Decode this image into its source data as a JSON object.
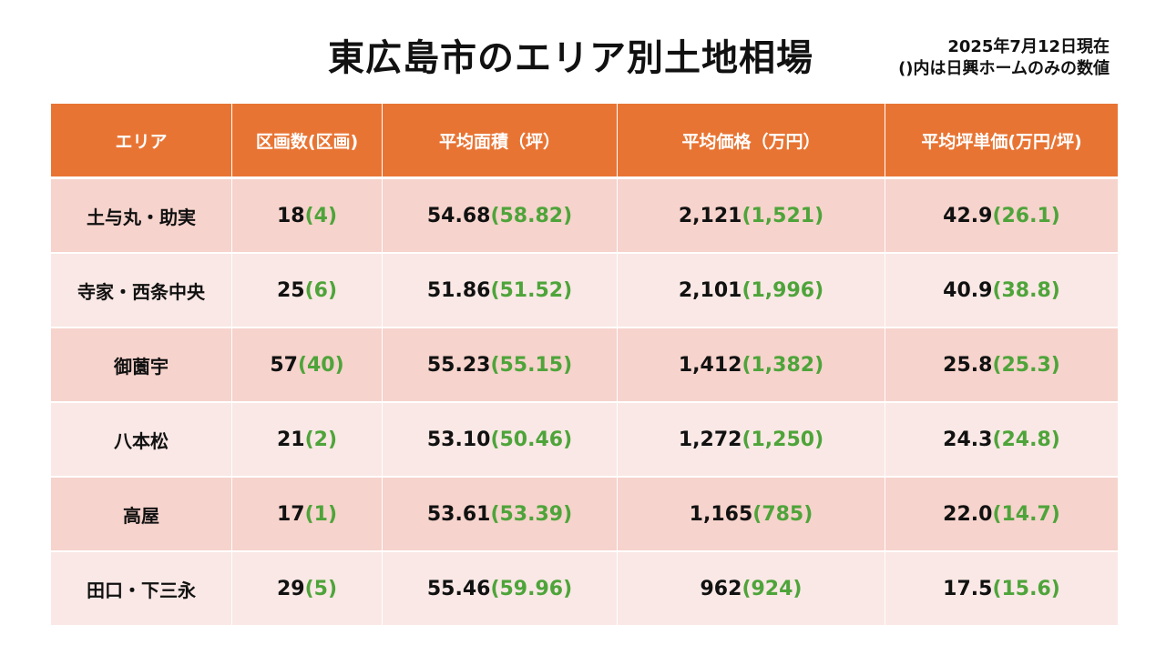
{
  "title": "東広島市のエリア別土地相場",
  "note": {
    "date": "2025年7月12日現在",
    "paren_note": "()内は日興ホームのみの数値"
  },
  "colors": {
    "header_bg": "#e87433",
    "row_odd_bg": "#f6d3cc",
    "row_even_bg": "#f9e8e5",
    "paren_text": "#4ea43a"
  },
  "table": {
    "headers": [
      "エリア",
      "区画数(区画)",
      "平均面積（坪）",
      "平均価格（万円）",
      "平均坪単価(万円/坪)"
    ],
    "rows": [
      {
        "area": "土与丸・助実",
        "lots": "18",
        "lots_p": "(4)",
        "size": "54.68",
        "size_p": "(58.82)",
        "price": "2,121",
        "price_p": "(1,521)",
        "unit": "42.9",
        "unit_p": "(26.1)"
      },
      {
        "area": "寺家・西条中央",
        "lots": "25",
        "lots_p": "(6)",
        "size": "51.86",
        "size_p": "(51.52)",
        "price": "2,101",
        "price_p": "(1,996)",
        "unit": "40.9",
        "unit_p": "(38.8)"
      },
      {
        "area": "御薗宇",
        "lots": "57",
        "lots_p": "(40)",
        "size": "55.23",
        "size_p": "(55.15)",
        "price": "1,412",
        "price_p": "(1,382)",
        "unit": "25.8",
        "unit_p": "(25.3)"
      },
      {
        "area": "八本松",
        "lots": "21",
        "lots_p": "(2)",
        "size": "53.10",
        "size_p": "(50.46)",
        "price": "1,272",
        "price_p": "(1,250)",
        "unit": "24.3",
        "unit_p": "(24.8)"
      },
      {
        "area": "高屋",
        "lots": "17",
        "lots_p": "(1)",
        "size": "53.61",
        "size_p": "(53.39)",
        "price": "1,165",
        "price_p": "(785)",
        "unit": "22.0",
        "unit_p": "(14.7)"
      },
      {
        "area": "田口・下三永",
        "lots": "29",
        "lots_p": "(5)",
        "size": "55.46",
        "size_p": "(59.96)",
        "price": "962",
        "price_p": "(924)",
        "unit": "17.5",
        "unit_p": "(15.6)"
      }
    ]
  }
}
